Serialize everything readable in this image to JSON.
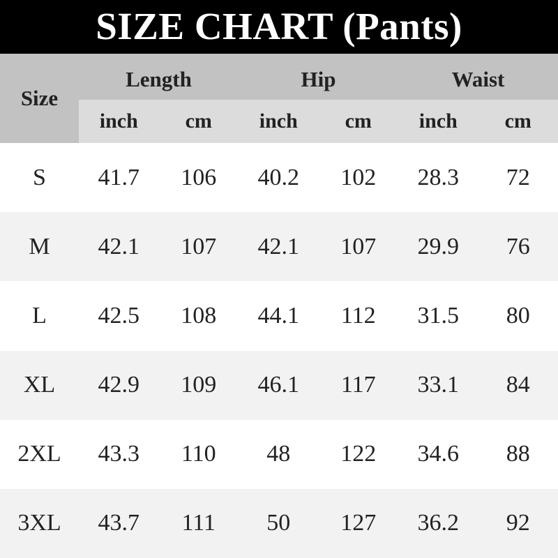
{
  "chart_data": {
    "type": "table",
    "title": "SIZE CHART (Pants)",
    "size_header": "Size",
    "group_headers": [
      "Length",
      "Hip",
      "Waist"
    ],
    "unit_headers": [
      "inch",
      "cm",
      "inch",
      "cm",
      "inch",
      "cm"
    ],
    "rows": [
      {
        "size": "S",
        "values": [
          "41.7",
          "106",
          "40.2",
          "102",
          "28.3",
          "72"
        ]
      },
      {
        "size": "M",
        "values": [
          "42.1",
          "107",
          "42.1",
          "107",
          "29.9",
          "76"
        ]
      },
      {
        "size": "L",
        "values": [
          "42.5",
          "108",
          "44.1",
          "112",
          "31.5",
          "80"
        ]
      },
      {
        "size": "XL",
        "values": [
          "42.9",
          "109",
          "46.1",
          "117",
          "33.1",
          "84"
        ]
      },
      {
        "size": "2XL",
        "values": [
          "43.3",
          "110",
          "48",
          "122",
          "34.6",
          "88"
        ]
      },
      {
        "size": "3XL",
        "values": [
          "43.7",
          "111",
          "50",
          "127",
          "36.2",
          "92"
        ]
      }
    ],
    "colors": {
      "title_bg": "#000000",
      "title_text": "#ffffff",
      "group_header_bg": "#c2c2c2",
      "unit_header_bg": "#dcdcdc",
      "row_odd_bg": "#ffffff",
      "row_even_bg": "#f2f2f2",
      "text": "#222222"
    },
    "layout": {
      "grid": "off",
      "legend": "none"
    }
  }
}
